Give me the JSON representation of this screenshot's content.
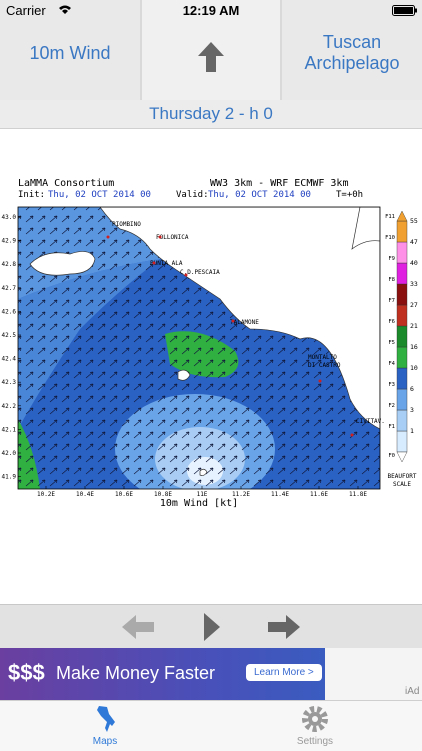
{
  "status": {
    "carrier": "Carrier",
    "time": "12:19 AM"
  },
  "nav": {
    "left": "10m Wind",
    "right": "Tuscan Archipelago"
  },
  "subtitle": "Thursday 2 - h 0",
  "map": {
    "org": "LaMMA Consortium",
    "model": "WW3 3km - WRF ECMWF 3km",
    "init_label": "Init:",
    "init_value": "Thu, 02 OCT 2014  00",
    "valid_label": "Valid:",
    "valid_value": "Thu, 02 OCT 2014  00",
    "lead": "T=+0h",
    "lat_labels": [
      "43.0",
      "42.9",
      "42.8",
      "42.7",
      "42.6",
      "42.5",
      "42.4",
      "42.3",
      "42.2",
      "42.1",
      "42.0",
      "41.9"
    ],
    "lon_labels": [
      "10.2E",
      "10.4E",
      "10.6E",
      "10.8E",
      "11E",
      "11.2E",
      "11.4E",
      "11.6E",
      "11.8E"
    ],
    "x_title": "10m Wind [kt]",
    "places": [
      "PIOMBINO",
      "FOLLONICA",
      "PUNTA ALA",
      "C.D.PESCAIA",
      "TALAMONE",
      "MONTALTO",
      "DI CASTRO",
      "CIVITAV."
    ],
    "beaufort": [
      "F0",
      "F1",
      "F2",
      "F3",
      "F4",
      "F5",
      "F6",
      "F7",
      "F8",
      "F9",
      "F10",
      "F11"
    ],
    "knots": [
      "1",
      "3",
      "6",
      "10",
      "16",
      "21",
      "27",
      "33",
      "40",
      "47",
      "55"
    ],
    "scale_title": "BEAUFORT",
    "scale_subtitle": "SCALE"
  },
  "ad": {
    "dollars": "$$$",
    "headline": "Make Money Faster",
    "button": "Learn More >",
    "badge": "iAd"
  },
  "tabs": [
    "Maps",
    "Settings"
  ]
}
